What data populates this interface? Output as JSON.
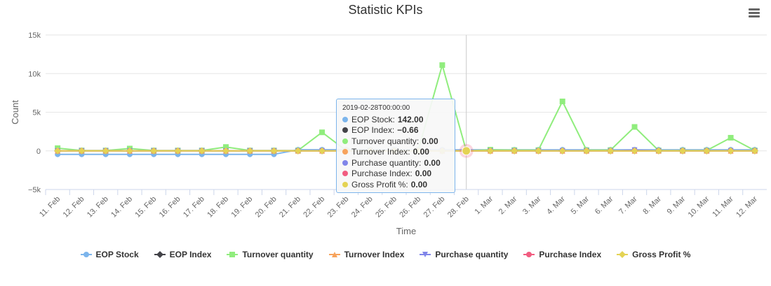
{
  "header": {
    "title": "Statistic KPIs"
  },
  "menu": {
    "icon": "hamburger-menu-icon"
  },
  "chart_data": {
    "type": "line",
    "title": "Statistic KPIs",
    "xlabel": "Time",
    "ylabel": "Count",
    "ylim": [
      -5000,
      15000
    ],
    "yticks": [
      -5000,
      0,
      5000,
      10000,
      15000
    ],
    "ytick_labels": [
      "−5k",
      "0",
      "5k",
      "10k",
      "15k"
    ],
    "grid": true,
    "legend_position": "bottom",
    "categories": [
      "11. Feb",
      "12. Feb",
      "13. Feb",
      "14. Feb",
      "15. Feb",
      "16. Feb",
      "17. Feb",
      "18. Feb",
      "19. Feb",
      "20. Feb",
      "21. Feb",
      "22. Feb",
      "23. Feb",
      "24. Feb",
      "25. Feb",
      "26. Feb",
      "27. Feb",
      "28. Feb",
      "1. Mar",
      "2. Mar",
      "3. Mar",
      "4. Mar",
      "5. Mar",
      "6. Mar",
      "7. Mar",
      "8. Mar",
      "9. Mar",
      "10. Mar",
      "11. Mar",
      "12. Mar"
    ],
    "series": [
      {
        "name": "EOP Stock",
        "color": "#7cb5ec",
        "marker": "circle",
        "values": [
          -450,
          -450,
          -450,
          -450,
          -450,
          -450,
          -450,
          -450,
          -450,
          -450,
          150,
          150,
          150,
          150,
          150,
          142,
          142,
          142,
          142,
          142,
          142,
          142,
          142,
          142,
          142,
          142,
          142,
          142,
          142,
          142
        ]
      },
      {
        "name": "EOP Index",
        "color": "#434348",
        "marker": "diamond",
        "values": [
          -1,
          -1,
          -1,
          -1,
          -1,
          -1,
          -1,
          -1,
          -1,
          -1,
          -1,
          -1,
          -1,
          -1,
          -1,
          -1,
          -1,
          -0.66,
          -1,
          -1,
          -1,
          -1,
          -1,
          -1,
          -1,
          -1,
          -1,
          -1,
          -1,
          -1
        ]
      },
      {
        "name": "Turnover quantity",
        "color": "#90ed7d",
        "marker": "square",
        "values": [
          350,
          50,
          50,
          300,
          50,
          50,
          50,
          500,
          50,
          50,
          50,
          2400,
          50,
          50,
          50,
          50,
          11100,
          0,
          150,
          100,
          100,
          6400,
          100,
          100,
          3100,
          50,
          50,
          50,
          1700,
          50
        ]
      },
      {
        "name": "Turnover Index",
        "color": "#f7a35c",
        "marker": "triangle",
        "values": [
          0,
          0,
          0,
          0,
          0,
          0,
          0,
          0,
          0,
          0,
          0,
          0,
          0,
          0,
          0,
          0,
          0,
          0,
          0,
          0,
          0,
          0,
          0,
          0,
          0,
          0,
          0,
          0,
          0,
          0
        ]
      },
      {
        "name": "Purchase quantity",
        "color": "#8085e9",
        "marker": "triangle-down",
        "values": [
          0,
          0,
          0,
          0,
          0,
          0,
          0,
          0,
          0,
          0,
          0,
          0,
          0,
          0,
          0,
          0,
          0,
          0,
          0,
          0,
          0,
          0,
          0,
          0,
          100,
          0,
          0,
          0,
          0,
          0
        ]
      },
      {
        "name": "Purchase Index",
        "color": "#f15c80",
        "marker": "circle",
        "values": [
          0,
          0,
          0,
          0,
          0,
          0,
          0,
          0,
          0,
          0,
          0,
          0,
          0,
          0,
          0,
          0,
          0,
          0,
          0,
          0,
          0,
          0,
          0,
          0,
          0,
          0,
          0,
          0,
          0,
          0
        ]
      },
      {
        "name": "Gross Profit %",
        "color": "#e4d354",
        "marker": "diamond",
        "values": [
          0,
          0,
          0,
          0,
          0,
          0,
          0,
          0,
          0,
          0,
          0,
          0,
          0,
          0,
          0,
          0,
          0,
          0,
          0,
          0,
          0,
          0,
          0,
          0,
          0,
          0,
          0,
          0,
          0,
          0
        ]
      }
    ],
    "crosshair_category": "28. Feb"
  },
  "tooltip": {
    "header": "2019-02-28T00:00:00",
    "rows": [
      {
        "label": "EOP Stock:",
        "value": "142.00",
        "color": "#7cb5ec"
      },
      {
        "label": "EOP Index:",
        "value": "−0.66",
        "color": "#434348"
      },
      {
        "label": "Turnover quantity:",
        "value": "0.00",
        "color": "#90ed7d"
      },
      {
        "label": "Turnover Index:",
        "value": "0.00",
        "color": "#f7a35c"
      },
      {
        "label": "Purchase quantity:",
        "value": "0.00",
        "color": "#8085e9"
      },
      {
        "label": "Purchase Index:",
        "value": "0.00",
        "color": "#f15c80"
      },
      {
        "label": "Gross Profit %:",
        "value": "0.00",
        "color": "#e4d354"
      }
    ]
  }
}
